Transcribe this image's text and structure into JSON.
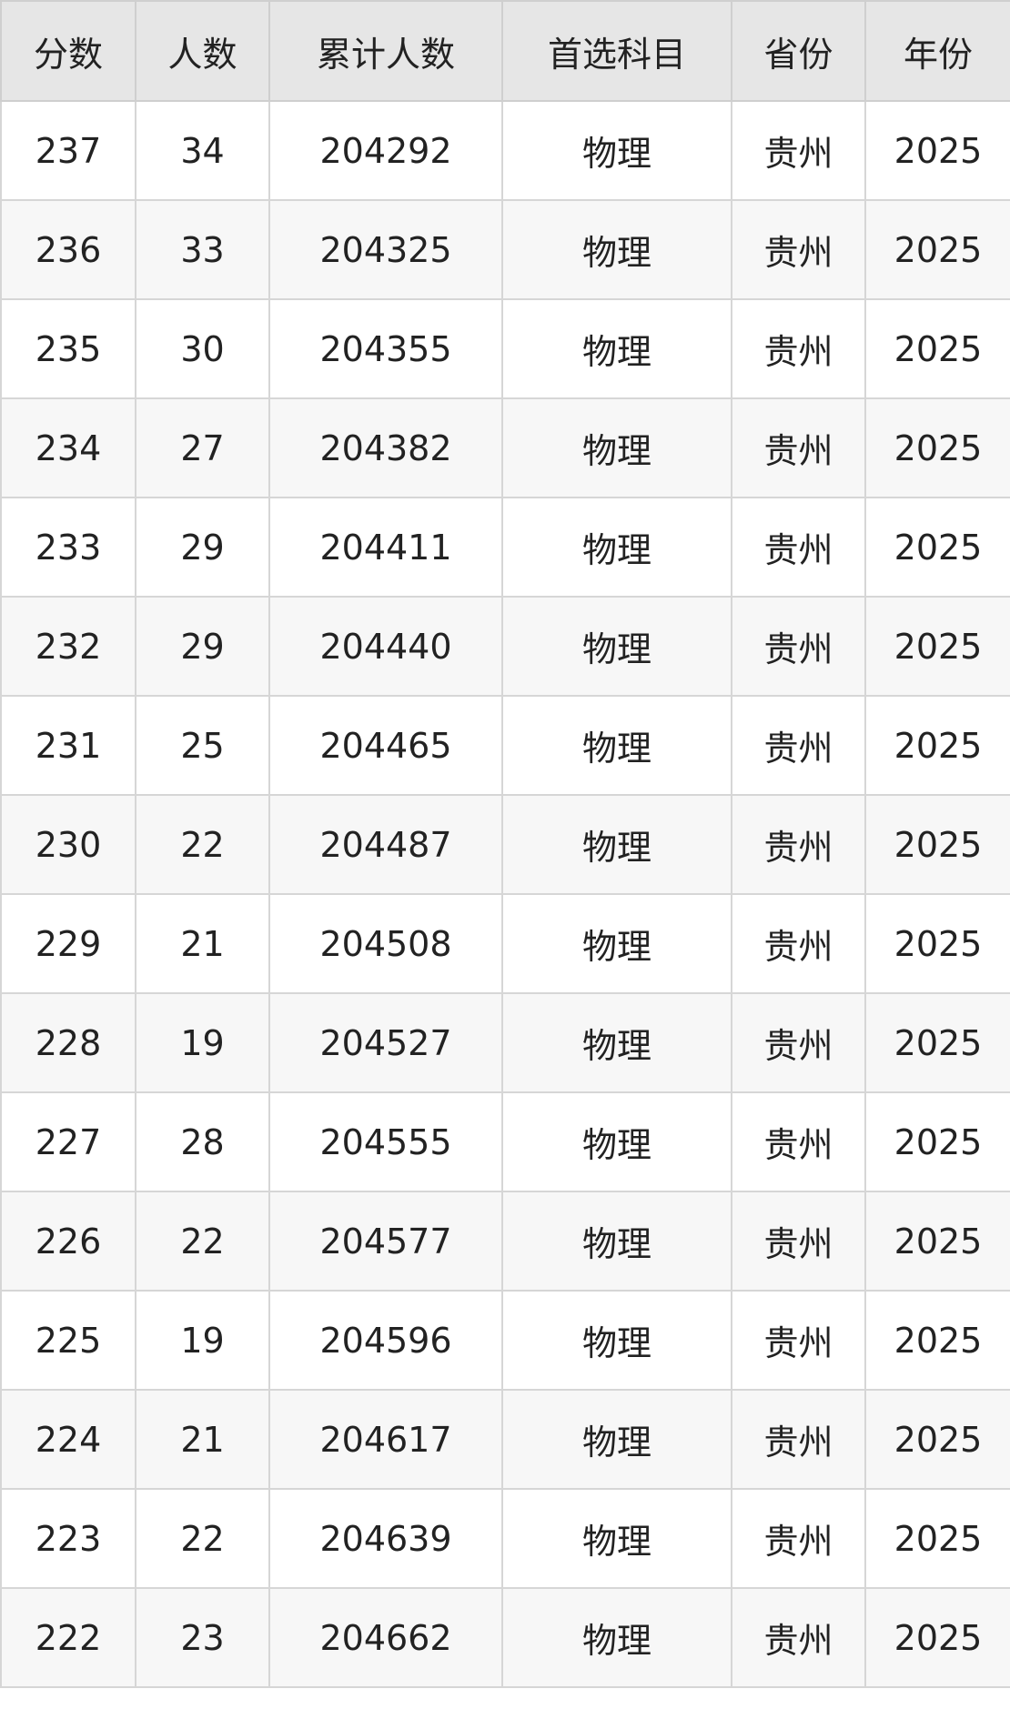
{
  "table": {
    "headers": [
      "分数",
      "人数",
      "累计人数",
      "首选科目",
      "省份",
      "年份"
    ],
    "rows": [
      [
        "237",
        "34",
        "204292",
        "物理",
        "贵州",
        "2025"
      ],
      [
        "236",
        "33",
        "204325",
        "物理",
        "贵州",
        "2025"
      ],
      [
        "235",
        "30",
        "204355",
        "物理",
        "贵州",
        "2025"
      ],
      [
        "234",
        "27",
        "204382",
        "物理",
        "贵州",
        "2025"
      ],
      [
        "233",
        "29",
        "204411",
        "物理",
        "贵州",
        "2025"
      ],
      [
        "232",
        "29",
        "204440",
        "物理",
        "贵州",
        "2025"
      ],
      [
        "231",
        "25",
        "204465",
        "物理",
        "贵州",
        "2025"
      ],
      [
        "230",
        "22",
        "204487",
        "物理",
        "贵州",
        "2025"
      ],
      [
        "229",
        "21",
        "204508",
        "物理",
        "贵州",
        "2025"
      ],
      [
        "228",
        "19",
        "204527",
        "物理",
        "贵州",
        "2025"
      ],
      [
        "227",
        "28",
        "204555",
        "物理",
        "贵州",
        "2025"
      ],
      [
        "226",
        "22",
        "204577",
        "物理",
        "贵州",
        "2025"
      ],
      [
        "225",
        "19",
        "204596",
        "物理",
        "贵州",
        "2025"
      ],
      [
        "224",
        "21",
        "204617",
        "物理",
        "贵州",
        "2025"
      ],
      [
        "223",
        "22",
        "204639",
        "物理",
        "贵州",
        "2025"
      ],
      [
        "222",
        "23",
        "204662",
        "物理",
        "贵州",
        "2025"
      ]
    ]
  }
}
